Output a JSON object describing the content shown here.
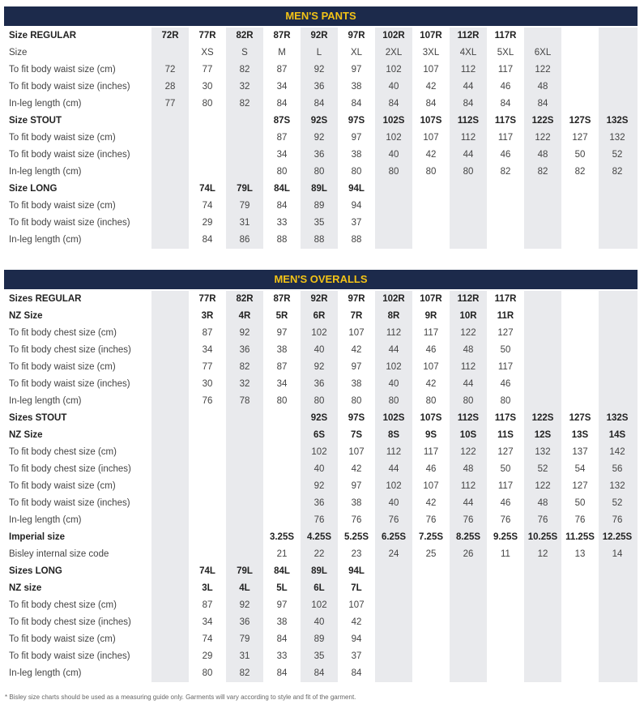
{
  "tables": [
    {
      "title": "MEN'S PANTS",
      "rows": [
        {
          "label": "Size REGULAR",
          "bold": true,
          "cells": [
            "72R",
            "77R",
            "82R",
            "87R",
            "92R",
            "97R",
            "102R",
            "107R",
            "112R",
            "117R",
            null,
            null,
            null
          ]
        },
        {
          "label": "Size",
          "bold": false,
          "cells": [
            null,
            "XS",
            "S",
            "M",
            "L",
            "XL",
            "2XL",
            "3XL",
            "4XL",
            "5XL",
            "6XL",
            null,
            null
          ]
        },
        {
          "label": "To fit body waist size (cm)",
          "bold": false,
          "cells": [
            72,
            77,
            82,
            87,
            92,
            97,
            102,
            107,
            112,
            117,
            122,
            null,
            null
          ]
        },
        {
          "label": "To fit body waist size (inches)",
          "bold": false,
          "cells": [
            28,
            30,
            32,
            34,
            36,
            38,
            40,
            42,
            44,
            46,
            48,
            null,
            null
          ]
        },
        {
          "label": "In-leg length (cm)",
          "bold": false,
          "cells": [
            77,
            80,
            82,
            84,
            84,
            84,
            84,
            84,
            84,
            84,
            84,
            null,
            null
          ]
        },
        {
          "label": "Size STOUT",
          "bold": true,
          "cells": [
            null,
            null,
            null,
            "87S",
            "92S",
            "97S",
            "102S",
            "107S",
            "112S",
            "117S",
            "122S",
            "127S",
            "132S"
          ]
        },
        {
          "label": "To fit body waist size (cm)",
          "bold": false,
          "cells": [
            null,
            null,
            null,
            87,
            92,
            97,
            102,
            107,
            112,
            117,
            122,
            127,
            132
          ]
        },
        {
          "label": "To fit body waist size (inches)",
          "bold": false,
          "cells": [
            null,
            null,
            null,
            34,
            36,
            38,
            40,
            42,
            44,
            46,
            48,
            50,
            52
          ]
        },
        {
          "label": "In-leg length (cm)",
          "bold": false,
          "cells": [
            null,
            null,
            null,
            80,
            80,
            80,
            80,
            80,
            80,
            82,
            82,
            82,
            82
          ]
        },
        {
          "label": "Size LONG",
          "bold": true,
          "cells": [
            null,
            "74L",
            "79L",
            "84L",
            "89L",
            "94L",
            null,
            null,
            null,
            null,
            null,
            null,
            null
          ]
        },
        {
          "label": "To fit body waist size (cm)",
          "bold": false,
          "cells": [
            null,
            74,
            79,
            84,
            89,
            94,
            null,
            null,
            null,
            null,
            null,
            null,
            null
          ]
        },
        {
          "label": "To fit body waist size (inches)",
          "bold": false,
          "cells": [
            null,
            29,
            31,
            33,
            35,
            37,
            null,
            null,
            null,
            null,
            null,
            null,
            null
          ]
        },
        {
          "label": "In-leg length (cm)",
          "bold": false,
          "cells": [
            null,
            84,
            86,
            88,
            88,
            88,
            null,
            null,
            null,
            null,
            null,
            null,
            null
          ]
        }
      ]
    },
    {
      "title": "MEN'S OVERALLS",
      "rows": [
        {
          "label": "Sizes REGULAR",
          "bold": true,
          "cells": [
            null,
            "77R",
            "82R",
            "87R",
            "92R",
            "97R",
            "102R",
            "107R",
            "112R",
            "117R",
            null,
            null,
            null
          ]
        },
        {
          "label": "NZ Size",
          "bold": true,
          "cells": [
            null,
            "3R",
            "4R",
            "5R",
            "6R",
            "7R",
            "8R",
            "9R",
            "10R",
            "11R",
            null,
            null,
            null
          ]
        },
        {
          "label": "To fit body chest size (cm)",
          "bold": false,
          "cells": [
            null,
            87,
            92,
            97,
            102,
            107,
            112,
            117,
            122,
            127,
            null,
            null,
            null
          ]
        },
        {
          "label": "To fit body chest size (inches)",
          "bold": false,
          "cells": [
            null,
            34,
            36,
            38,
            40,
            42,
            44,
            46,
            48,
            50,
            null,
            null,
            null
          ]
        },
        {
          "label": "To fit body waist size (cm)",
          "bold": false,
          "cells": [
            null,
            77,
            82,
            87,
            92,
            97,
            102,
            107,
            112,
            117,
            null,
            null,
            null
          ]
        },
        {
          "label": "To fit body waist size (inches)",
          "bold": false,
          "cells": [
            null,
            30,
            32,
            34,
            36,
            38,
            40,
            42,
            44,
            46,
            null,
            null,
            null
          ]
        },
        {
          "label": "In-leg length (cm)",
          "bold": false,
          "cells": [
            null,
            76,
            78,
            80,
            80,
            80,
            80,
            80,
            80,
            80,
            null,
            null,
            null
          ]
        },
        {
          "label": "Sizes STOUT",
          "bold": true,
          "cells": [
            null,
            null,
            null,
            null,
            "92S",
            "97S",
            "102S",
            "107S",
            "112S",
            "117S",
            "122S",
            "127S",
            "132S"
          ]
        },
        {
          "label": "NZ Size",
          "bold": true,
          "cells": [
            null,
            null,
            null,
            null,
            "6S",
            "7S",
            "8S",
            "9S",
            "10S",
            "11S",
            "12S",
            "13S",
            "14S"
          ]
        },
        {
          "label": "To fit body chest size (cm)",
          "bold": false,
          "cells": [
            null,
            null,
            null,
            null,
            102,
            107,
            112,
            117,
            122,
            127,
            132,
            137,
            142
          ]
        },
        {
          "label": "To fit body chest size (inches)",
          "bold": false,
          "cells": [
            null,
            null,
            null,
            null,
            40,
            42,
            44,
            46,
            48,
            50,
            52,
            54,
            56
          ]
        },
        {
          "label": "To fit body waist size (cm)",
          "bold": false,
          "cells": [
            null,
            null,
            null,
            null,
            92,
            97,
            102,
            107,
            112,
            117,
            122,
            127,
            132
          ]
        },
        {
          "label": "To fit body waist size (inches)",
          "bold": false,
          "cells": [
            null,
            null,
            null,
            null,
            36,
            38,
            40,
            42,
            44,
            46,
            48,
            50,
            52
          ]
        },
        {
          "label": "In-leg length (cm)",
          "bold": false,
          "cells": [
            null,
            null,
            null,
            null,
            76,
            76,
            76,
            76,
            76,
            76,
            76,
            76,
            76
          ]
        },
        {
          "label": "Imperial size",
          "bold": true,
          "cells": [
            null,
            null,
            null,
            "3.25S",
            "4.25S",
            "5.25S",
            "6.25S",
            "7.25S",
            "8.25S",
            "9.25S",
            "10.25S",
            "11.25S",
            "12.25S"
          ]
        },
        {
          "label": "Bisley internal size code",
          "bold": false,
          "cells": [
            null,
            null,
            null,
            21,
            22,
            23,
            24,
            25,
            26,
            11,
            12,
            13,
            14
          ]
        },
        {
          "label": "Sizes LONG",
          "bold": true,
          "cells": [
            null,
            "74L",
            "79L",
            "84L",
            "89L",
            "94L",
            null,
            null,
            null,
            null,
            null,
            null,
            null
          ]
        },
        {
          "label": "NZ size",
          "bold": true,
          "cells": [
            null,
            "3L",
            "4L",
            "5L",
            "6L",
            "7L",
            null,
            null,
            null,
            null,
            null,
            null,
            null
          ]
        },
        {
          "label": "To fit body chest size (cm)",
          "bold": false,
          "cells": [
            null,
            87,
            92,
            97,
            102,
            107,
            null,
            null,
            null,
            null,
            null,
            null,
            null
          ]
        },
        {
          "label": "To fit body chest size (inches)",
          "bold": false,
          "cells": [
            null,
            34,
            36,
            38,
            40,
            42,
            null,
            null,
            null,
            null,
            null,
            null,
            null
          ]
        },
        {
          "label": "To fit body waist size (cm)",
          "bold": false,
          "cells": [
            null,
            74,
            79,
            84,
            89,
            94,
            null,
            null,
            null,
            null,
            null,
            null,
            null
          ]
        },
        {
          "label": "To fit body waist size (inches)",
          "bold": false,
          "cells": [
            null,
            29,
            31,
            33,
            35,
            37,
            null,
            null,
            null,
            null,
            null,
            null,
            null
          ]
        },
        {
          "label": "In-leg length (cm)",
          "bold": false,
          "cells": [
            null,
            80,
            82,
            84,
            84,
            84,
            null,
            null,
            null,
            null,
            null,
            null,
            null
          ]
        }
      ]
    }
  ],
  "footnote": "* Bisley size charts should be used as a measuring guide only. Garments will vary according to style and fit of the garment."
}
